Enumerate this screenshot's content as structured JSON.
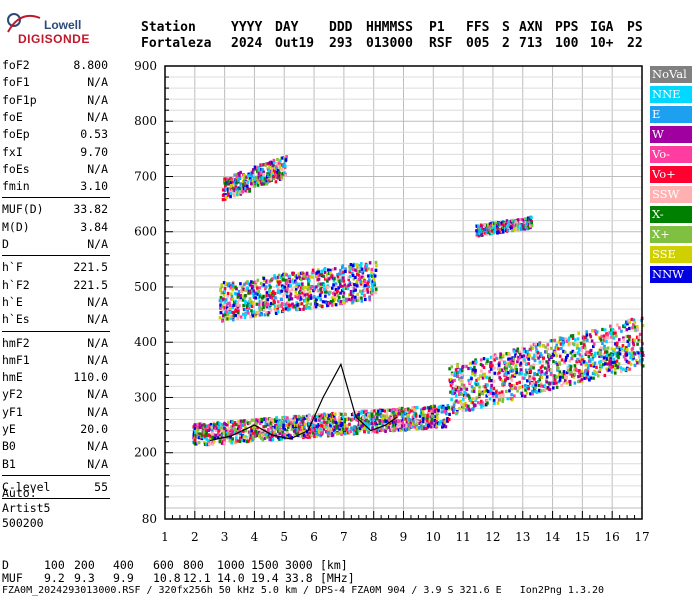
{
  "logo": {
    "line1": "Lowell",
    "line2": "DIGISONDE"
  },
  "header": {
    "labels": [
      "Station",
      "YYYY",
      "DAY",
      "DDD",
      "HHMMSS",
      "P1",
      "FFS",
      "S",
      "AXN",
      "PPS",
      "IGA",
      "PS"
    ],
    "values": [
      "Fortaleza",
      "2024",
      "Out19",
      "293",
      "013000",
      "RSF",
      "005",
      "2",
      "713",
      "100",
      "10+",
      "22"
    ]
  },
  "params": {
    "group1": [
      {
        "label": "foF2",
        "value": "8.800"
      },
      {
        "label": "foF1",
        "value": "N/A"
      },
      {
        "label": "foF1p",
        "value": "N/A"
      },
      {
        "label": "foE",
        "value": "N/A"
      },
      {
        "label": "foEp",
        "value": "0.53"
      },
      {
        "label": "fxI",
        "value": "9.70"
      },
      {
        "label": "foEs",
        "value": "N/A"
      },
      {
        "label": "fmin",
        "value": "3.10"
      }
    ],
    "group2": [
      {
        "label": "MUF(D)",
        "value": "33.82"
      },
      {
        "label": "M(D)",
        "value": "3.84"
      },
      {
        "label": "D",
        "value": "N/A"
      }
    ],
    "group3": [
      {
        "label": "h`F",
        "value": "221.5"
      },
      {
        "label": "h`F2",
        "value": "221.5"
      },
      {
        "label": "h`E",
        "value": "N/A"
      },
      {
        "label": "h`Es",
        "value": "N/A"
      }
    ],
    "group4": [
      {
        "label": "hmF2",
        "value": "N/A"
      },
      {
        "label": "hmF1",
        "value": "N/A"
      },
      {
        "label": "hmE",
        "value": "110.0"
      },
      {
        "label": "yF2",
        "value": "N/A"
      },
      {
        "label": "yF1",
        "value": "N/A"
      },
      {
        "label": "yE",
        "value": "20.0"
      },
      {
        "label": "B0",
        "value": "N/A"
      },
      {
        "label": "B1",
        "value": "N/A"
      }
    ],
    "group5": [
      {
        "label": "C-level",
        "value": "55"
      }
    ]
  },
  "auto": {
    "line1": "Auto:",
    "line2": "Artist5",
    "line3": "500200"
  },
  "legend": [
    {
      "label": "NoVal",
      "color": "#808080"
    },
    {
      "label": "NNE",
      "color": "#00d8ff"
    },
    {
      "label": "E",
      "color": "#1ea0f0"
    },
    {
      "label": "W",
      "color": "#a000a0"
    },
    {
      "label": "Vo-",
      "color": "#ff3ca0"
    },
    {
      "label": "Vo+",
      "color": "#ff0030"
    },
    {
      "label": "SSW",
      "color": "#ffb0b0"
    },
    {
      "label": "X-",
      "color": "#008000"
    },
    {
      "label": "X+",
      "color": "#80c040"
    },
    {
      "label": "SSE",
      "color": "#d0d000"
    },
    {
      "label": "NNW",
      "color": "#0000e0"
    }
  ],
  "bottom": {
    "d_label": "D",
    "d_values": [
      "100",
      "200",
      "400",
      "600",
      "800",
      "1000",
      "1500",
      "3000",
      "[km]"
    ],
    "muf_label": "MUF",
    "muf_values": [
      "9.2",
      "9.3",
      "9.9",
      "10.8",
      "12.1",
      "14.0",
      "19.4",
      "33.8",
      "[MHz]"
    ],
    "footer": "FZA0M_2024293013000.RSF / 320fx256h 50 kHz 5.0 km / DPS-4 FZA0M 904 / 3.9 S 321.6 E   Ion2Png 1.3.20"
  },
  "chart_data": {
    "type": "scatter",
    "xlabel": "",
    "ylabel": "",
    "x_ticks": [
      1,
      2,
      3,
      4,
      5,
      6,
      7,
      8,
      9,
      10,
      11,
      12,
      13,
      14,
      15,
      16,
      17
    ],
    "y_ticks": [
      80,
      200,
      300,
      400,
      500,
      600,
      700,
      800,
      900
    ],
    "xlim": [
      1,
      17
    ],
    "ylim": [
      80,
      900
    ],
    "grid": true,
    "regions": [
      {
        "name": "F-trace low",
        "x_range": [
          1.9,
          10.5
        ],
        "base_start": 215,
        "base_end": 250,
        "spread": 40
      },
      {
        "name": "F-trace high",
        "x_range": [
          10.5,
          17.0
        ],
        "base_start": 270,
        "base_end": 360,
        "spread": 90
      },
      {
        "name": "multi-hop 2F",
        "x_range": [
          2.8,
          8.0
        ],
        "base_start": 440,
        "base_end": 480,
        "spread": 70
      },
      {
        "name": "3F",
        "x_range": [
          2.9,
          5.0
        ],
        "base_start": 660,
        "base_end": 700,
        "spread": 40
      },
      {
        "name": "echo 600",
        "x_range": [
          11.4,
          13.3
        ],
        "base_start": 595,
        "base_end": 610,
        "spread": 20
      }
    ],
    "trace": {
      "x": [
        2.5,
        3.2,
        4.0,
        4.6,
        5.2,
        5.8,
        6.3,
        6.9,
        7.4,
        7.9,
        8.4,
        8.8
      ],
      "y": [
        222,
        230,
        250,
        232,
        225,
        240,
        300,
        360,
        265,
        240,
        250,
        265
      ]
    }
  }
}
